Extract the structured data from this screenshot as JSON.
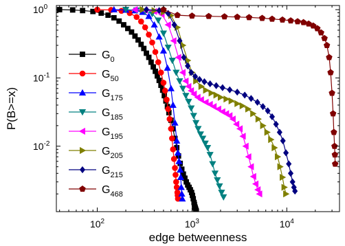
{
  "chart_data": {
    "type": "line",
    "title": "",
    "xlabel": "edge betweenness",
    "ylabel": "P(B>=x)",
    "xscale": "log",
    "yscale": "log",
    "xlim": [
      37,
      36000
    ],
    "ylim": [
      0.0011,
      1.15
    ],
    "x_ticks": [
      {
        "value": 100,
        "base": "10",
        "exp": "2"
      },
      {
        "value": 1000,
        "base": "10",
        "exp": "3"
      },
      {
        "value": 10000,
        "base": "10",
        "exp": "4"
      }
    ],
    "y_ticks": [
      {
        "value": 1,
        "base": "10",
        "exp": "0"
      },
      {
        "value": 0.1,
        "base": "10",
        "exp": "-1"
      },
      {
        "value": 0.01,
        "base": "10",
        "exp": "-2"
      }
    ],
    "legend_position": "left",
    "series": [
      {
        "name": "G",
        "sub": "0",
        "color": "#000000",
        "marker": "square",
        "x": [
          40,
          55,
          70,
          90,
          110,
          130,
          150,
          170,
          190,
          210,
          230,
          250,
          270,
          290,
          310,
          330,
          350,
          370,
          390,
          410,
          430,
          450,
          470,
          490,
          510,
          530,
          550,
          570,
          600,
          630,
          660,
          690,
          720,
          750,
          780,
          810,
          840,
          870,
          900,
          930,
          960,
          990,
          1010,
          1030,
          1050,
          1060,
          1070,
          1080,
          1090,
          1100,
          1110
        ],
        "y": [
          1.0,
          0.99,
          0.97,
          0.94,
          0.89,
          0.83,
          0.76,
          0.68,
          0.6,
          0.53,
          0.47,
          0.41,
          0.36,
          0.31,
          0.27,
          0.23,
          0.2,
          0.17,
          0.145,
          0.125,
          0.107,
          0.092,
          0.078,
          0.066,
          0.055,
          0.046,
          0.038,
          0.031,
          0.024,
          0.018,
          0.013,
          0.0095,
          0.0072,
          0.0056,
          0.0046,
          0.0039,
          0.0034,
          0.003,
          0.0027,
          0.0025,
          0.0023,
          0.0021,
          0.0019,
          0.0017,
          0.0015,
          0.0014,
          0.0013,
          0.00125,
          0.0012,
          0.00115,
          0.00112
        ]
      },
      {
        "name": "G",
        "sub": "50",
        "color": "#ff0000",
        "marker": "circle",
        "x": [
          100,
          140,
          180,
          220,
          260,
          290,
          320,
          350,
          380,
          410,
          440,
          470,
          500,
          520,
          540,
          560,
          580,
          600,
          615,
          630,
          645,
          660,
          670,
          680,
          690,
          700,
          705,
          710
        ],
        "y": [
          1.0,
          0.99,
          0.96,
          0.89,
          0.78,
          0.67,
          0.55,
          0.43,
          0.33,
          0.24,
          0.17,
          0.12,
          0.085,
          0.065,
          0.048,
          0.035,
          0.025,
          0.018,
          0.013,
          0.009,
          0.0065,
          0.0048,
          0.0038,
          0.003,
          0.0025,
          0.0021,
          0.0019,
          0.0017
        ]
      },
      {
        "name": "G",
        "sub": "175",
        "color": "#0000ff",
        "marker": "triangle-up",
        "x": [
          150,
          200,
          250,
          300,
          350,
          400,
          450,
          500,
          550,
          600,
          630,
          660,
          690,
          710,
          730,
          750,
          760,
          770,
          780,
          790
        ],
        "y": [
          1.0,
          0.99,
          0.97,
          0.92,
          0.8,
          0.6,
          0.4,
          0.25,
          0.14,
          0.07,
          0.04,
          0.022,
          0.012,
          0.008,
          0.006,
          0.0045,
          0.0035,
          0.0025,
          0.002,
          0.0017
        ]
      },
      {
        "name": "G",
        "sub": "185",
        "color": "#008080",
        "marker": "triangle-down",
        "x": [
          200,
          260,
          320,
          380,
          440,
          500,
          560,
          620,
          680,
          740,
          800,
          860,
          920,
          980,
          1040,
          1100,
          1160,
          1230,
          1300,
          1380,
          1460,
          1550,
          1650,
          1750,
          1850,
          1950,
          2050,
          2150
        ],
        "y": [
          1.0,
          0.98,
          0.95,
          0.87,
          0.7,
          0.45,
          0.28,
          0.18,
          0.12,
          0.09,
          0.07,
          0.055,
          0.045,
          0.036,
          0.028,
          0.022,
          0.018,
          0.015,
          0.013,
          0.011,
          0.0095,
          0.0075,
          0.0055,
          0.004,
          0.0032,
          0.0026,
          0.0021,
          0.0018
        ]
      },
      {
        "name": "G",
        "sub": "195",
        "color": "#ff00ff",
        "marker": "triangle-left",
        "x": [
          250,
          320,
          400,
          480,
          560,
          640,
          720,
          800,
          860,
          920,
          980,
          1050,
          1150,
          1250,
          1400,
          1550,
          1700,
          1900,
          2100,
          2300,
          2500,
          2700,
          2950,
          3200,
          3450,
          3700,
          3950,
          4200,
          4450,
          4700,
          4950,
          5150
        ],
        "y": [
          1.0,
          0.98,
          0.94,
          0.85,
          0.6,
          0.35,
          0.2,
          0.12,
          0.09,
          0.075,
          0.065,
          0.058,
          0.052,
          0.048,
          0.044,
          0.041,
          0.038,
          0.035,
          0.032,
          0.03,
          0.028,
          0.025,
          0.021,
          0.018,
          0.014,
          0.01,
          0.007,
          0.005,
          0.0036,
          0.0028,
          0.0023,
          0.002
        ]
      },
      {
        "name": "G",
        "sub": "205",
        "color": "#808000",
        "marker": "triangle-right",
        "x": [
          300,
          400,
          500,
          600,
          700,
          800,
          900,
          1000,
          1100,
          1250,
          1400,
          1600,
          1800,
          2000,
          2300,
          2600,
          3000,
          3400,
          3900,
          4400,
          5000,
          5600,
          6200,
          6800,
          7400,
          8000,
          8500,
          9000,
          9400,
          9800
        ],
        "y": [
          1.0,
          0.97,
          0.92,
          0.82,
          0.55,
          0.3,
          0.18,
          0.12,
          0.09,
          0.075,
          0.066,
          0.06,
          0.056,
          0.052,
          0.049,
          0.046,
          0.042,
          0.039,
          0.035,
          0.03,
          0.025,
          0.02,
          0.016,
          0.0125,
          0.0095,
          0.007,
          0.005,
          0.0035,
          0.0025,
          0.002
        ]
      },
      {
        "name": "G",
        "sub": "215",
        "color": "#000080",
        "marker": "diamond",
        "x": [
          330,
          450,
          560,
          650,
          740,
          820,
          900,
          980,
          1080,
          1200,
          1350,
          1550,
          1800,
          2100,
          2500,
          3000,
          3600,
          4200,
          4900,
          5600,
          6300,
          7000,
          7700,
          8400,
          9100,
          9800,
          10500,
          11000,
          11500,
          11900,
          12200
        ],
        "y": [
          1.0,
          0.97,
          0.88,
          0.6,
          0.35,
          0.2,
          0.15,
          0.12,
          0.105,
          0.095,
          0.088,
          0.082,
          0.077,
          0.072,
          0.067,
          0.062,
          0.056,
          0.05,
          0.044,
          0.038,
          0.033,
          0.027,
          0.021,
          0.016,
          0.012,
          0.008,
          0.0055,
          0.004,
          0.003,
          0.0025,
          0.0022
        ]
      },
      {
        "name": "G",
        "sub": "468",
        "color": "#800000",
        "marker": "pentagon",
        "x": [
          500,
          700,
          1000,
          1500,
          2200,
          3000,
          4000,
          5500,
          7000,
          9000,
          11000,
          13000,
          15000,
          17000,
          19000,
          21000,
          23000,
          25000,
          26500,
          28000,
          29000,
          30000,
          30800,
          31400,
          31900,
          32200,
          32400
        ],
        "y": [
          1.0,
          0.83,
          0.81,
          0.8,
          0.79,
          0.78,
          0.77,
          0.75,
          0.73,
          0.71,
          0.69,
          0.67,
          0.65,
          0.62,
          0.58,
          0.53,
          0.46,
          0.38,
          0.3,
          0.2,
          0.12,
          0.06,
          0.03,
          0.016,
          0.01,
          0.0075,
          0.0055
        ]
      }
    ]
  }
}
